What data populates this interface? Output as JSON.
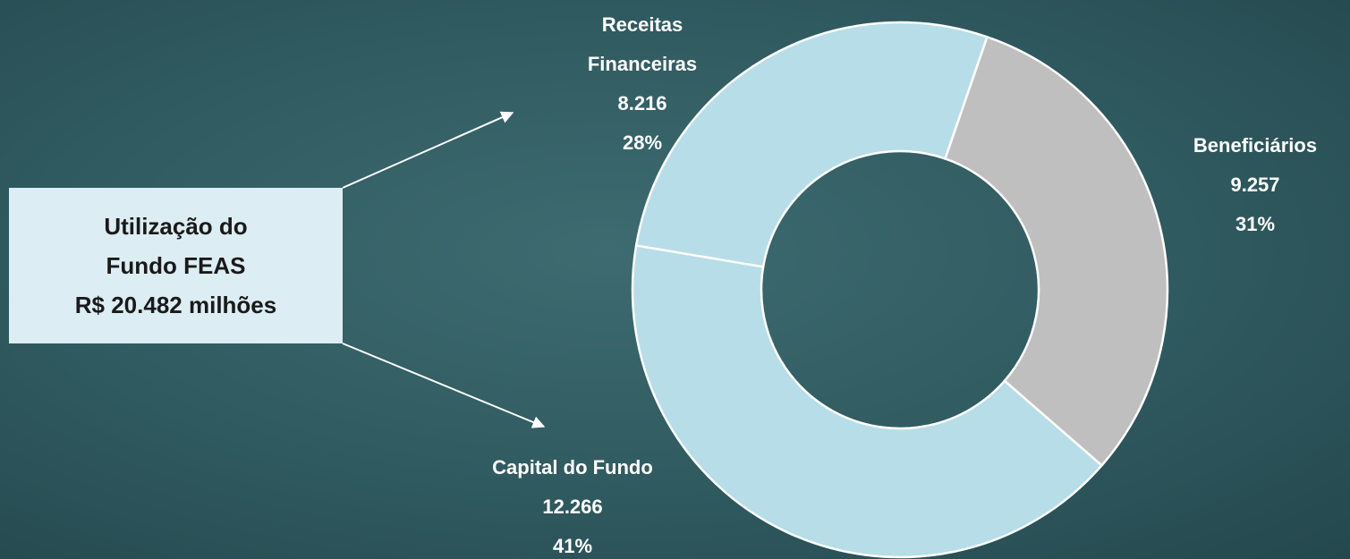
{
  "chart_data": {
    "type": "donut",
    "categories": [
      "Beneficiários",
      "Capital do Fundo",
      "Receitas Financeiras"
    ],
    "values": [
      9257,
      12266,
      8216
    ],
    "value_labels": [
      "9.257",
      "12.266",
      "8.216"
    ],
    "percents": [
      31,
      41,
      28
    ],
    "percent_labels": [
      "31%",
      "41%",
      "28%"
    ],
    "colors": [
      "#bfbfbf",
      "#b7dde8",
      "#b7dde8"
    ],
    "annotation": [
      "Utilização do",
      "Fundo FEAS",
      "R$ 20.482 milhões"
    ]
  }
}
